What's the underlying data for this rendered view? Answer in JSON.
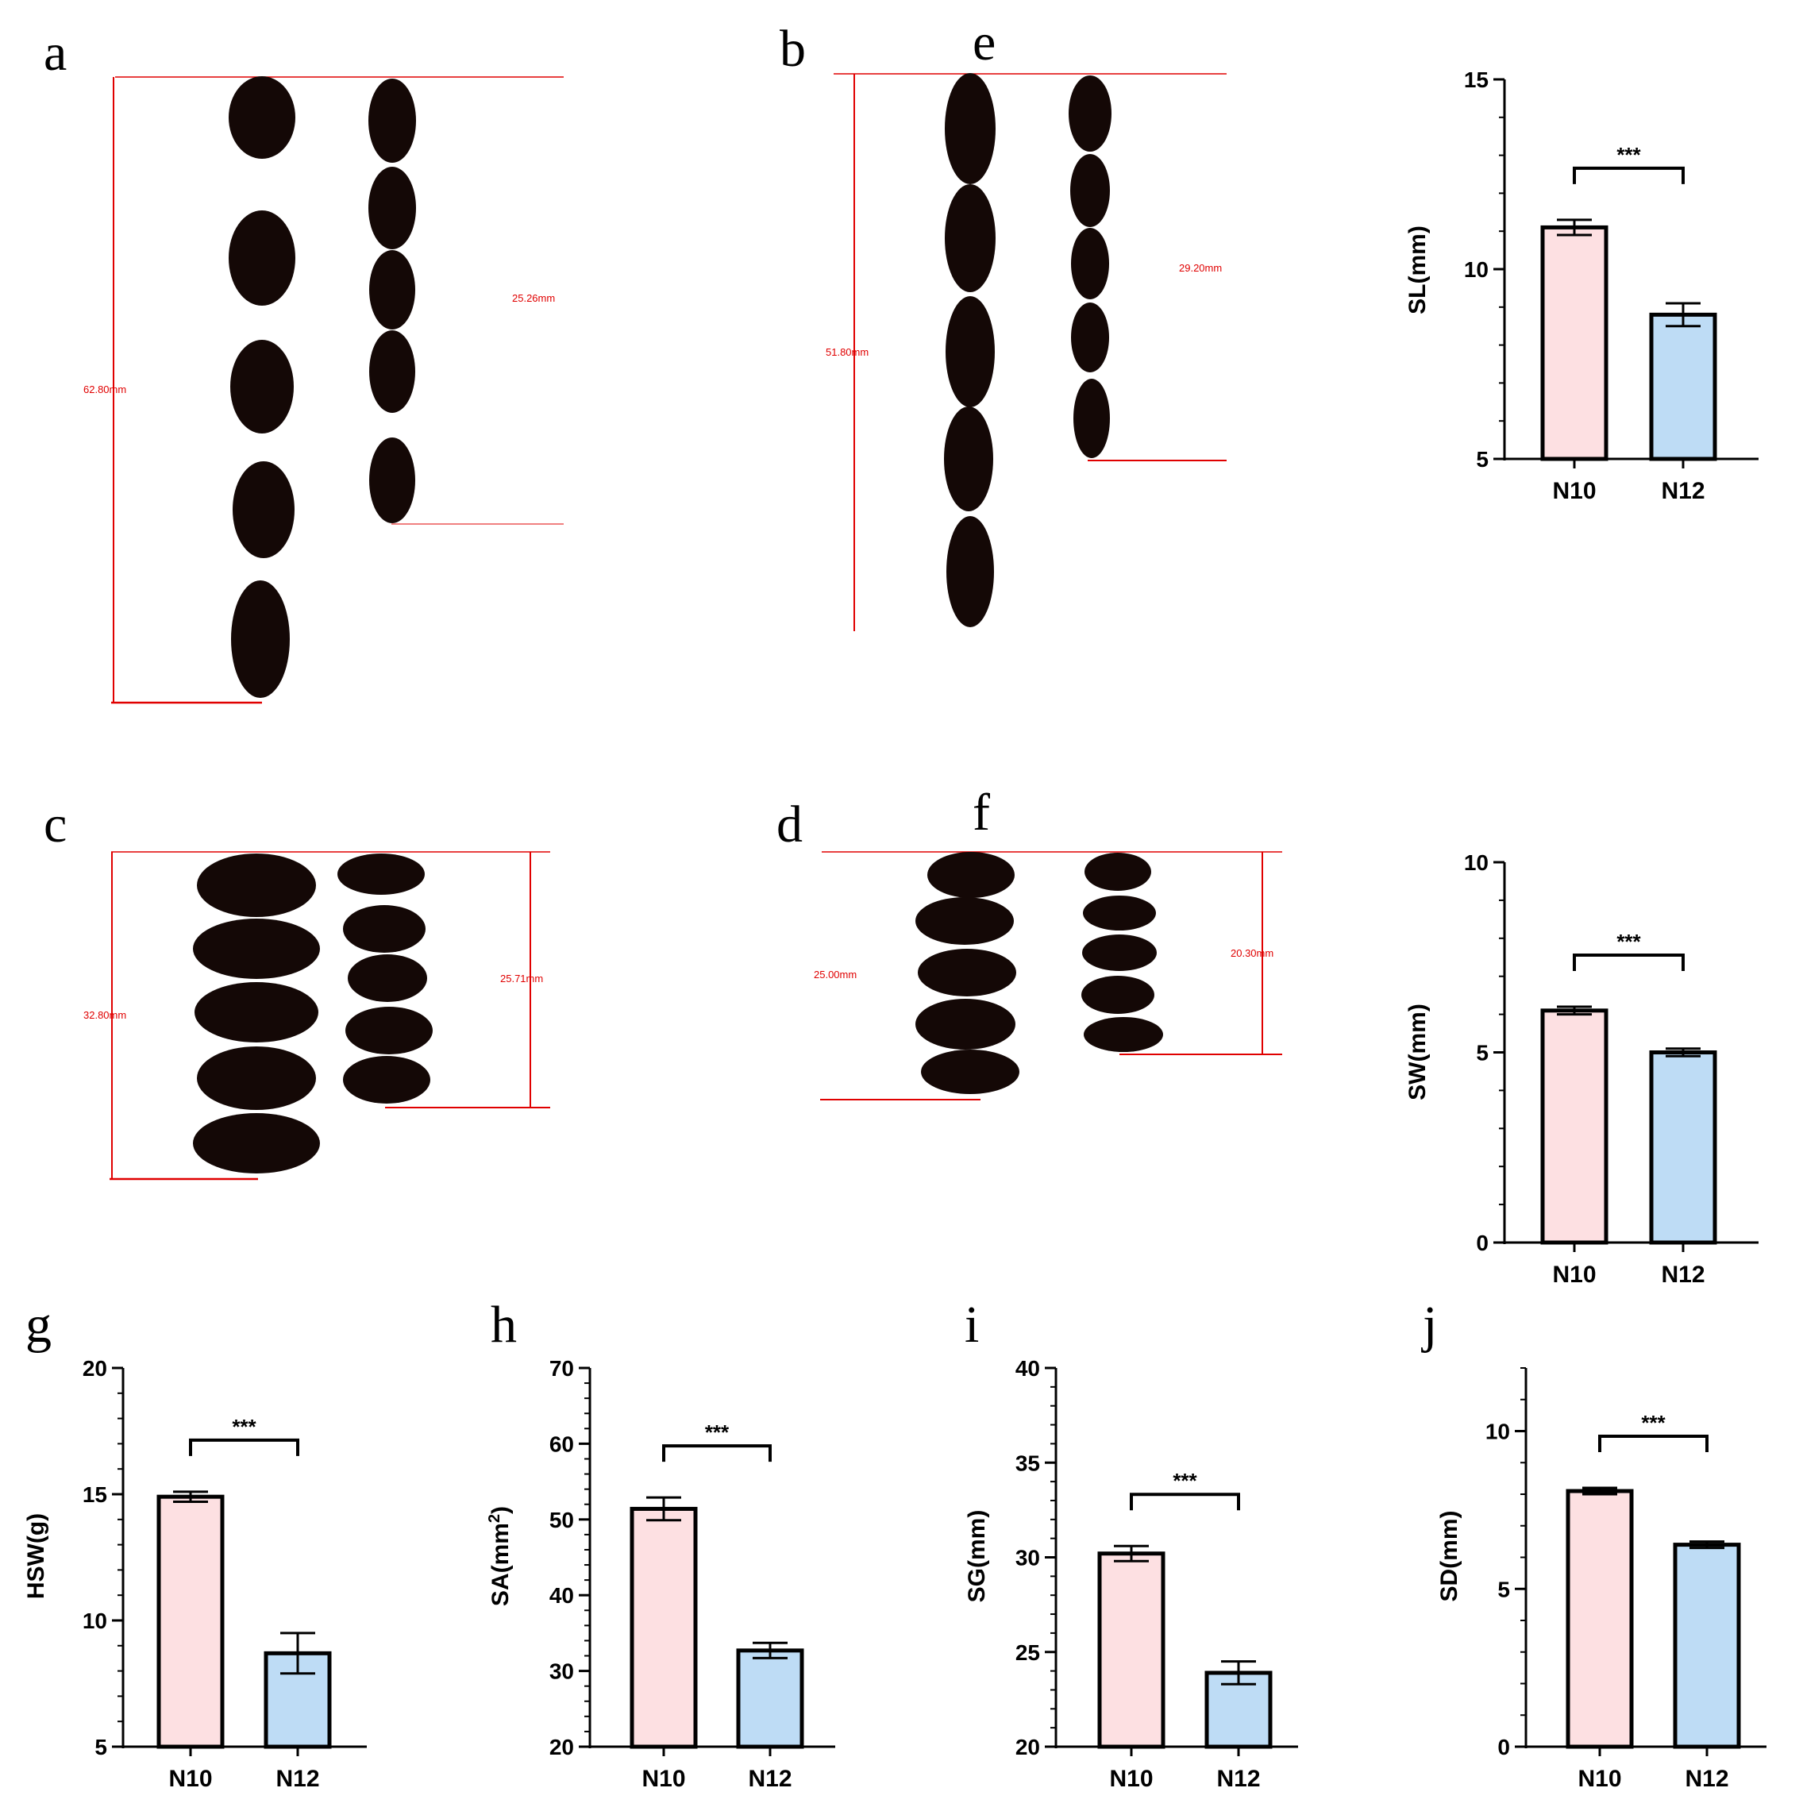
{
  "colors": {
    "n10_fill": "#fde0e2",
    "n12_fill": "#bedcf5",
    "measure_line": "#e00000",
    "seed": "#140806"
  },
  "photos": [
    {
      "label": "a",
      "measurements": [
        "62.80mm",
        "25.26mm"
      ]
    },
    {
      "label": "b",
      "measurements": [
        "51.80mm",
        "29.20mm"
      ]
    },
    {
      "label": "c",
      "measurements": [
        "32.80mm",
        "25.71mm"
      ]
    },
    {
      "label": "d",
      "measurements": [
        "25.00mm",
        "20.30mm"
      ]
    }
  ],
  "chart_data": [
    {
      "panel": "e",
      "type": "bar",
      "categories": [
        "N10",
        "N12"
      ],
      "values": [
        11.1,
        8.8
      ],
      "errors": [
        0.2,
        0.3
      ],
      "ylabel": "SL(mm)",
      "ylim": [
        5,
        15
      ],
      "yticks": [
        "5",
        "10",
        "15"
      ],
      "significance": "***"
    },
    {
      "panel": "f",
      "type": "bar",
      "categories": [
        "N10",
        "N12"
      ],
      "values": [
        6.1,
        5.0
      ],
      "errors": [
        0.1,
        0.1
      ],
      "ylabel": "SW(mm)",
      "ylim": [
        0,
        10
      ],
      "yticks": [
        "0",
        "5",
        "10"
      ],
      "significance": "***"
    },
    {
      "panel": "g",
      "type": "bar",
      "categories": [
        "N10",
        "N12"
      ],
      "values": [
        14.9,
        8.7
      ],
      "errors": [
        0.2,
        0.8
      ],
      "ylabel": "HSW(g)",
      "ylim": [
        5,
        20
      ],
      "yticks": [
        "5",
        "10",
        "15",
        "20"
      ],
      "significance": "***"
    },
    {
      "panel": "h",
      "type": "bar",
      "categories": [
        "N10",
        "N12"
      ],
      "values": [
        51.4,
        32.7
      ],
      "errors": [
        1.5,
        1.0
      ],
      "ylabel": "SA(mm",
      "ylabel_sup": "2",
      "ylabel_tail": ")",
      "ylim": [
        20,
        70
      ],
      "yticks": [
        "20",
        "30",
        "40",
        "50",
        "60",
        "70"
      ],
      "significance": "***"
    },
    {
      "panel": "i",
      "type": "bar",
      "categories": [
        "N10",
        "N12"
      ],
      "values": [
        30.2,
        23.9
      ],
      "errors": [
        0.4,
        0.6
      ],
      "ylabel": "SG(mm)",
      "ylim": [
        20,
        40
      ],
      "yticks": [
        "20",
        "25",
        "30",
        "35",
        "40"
      ],
      "significance": "***"
    },
    {
      "panel": "j",
      "type": "bar",
      "categories": [
        "N10",
        "N12"
      ],
      "values": [
        8.1,
        6.4
      ],
      "errors": [
        0.1,
        0.1
      ],
      "ylabel": "SD(mm)",
      "ylim": [
        0,
        12
      ],
      "yticks": [
        "0",
        "5",
        "10"
      ],
      "significance": "***"
    }
  ]
}
